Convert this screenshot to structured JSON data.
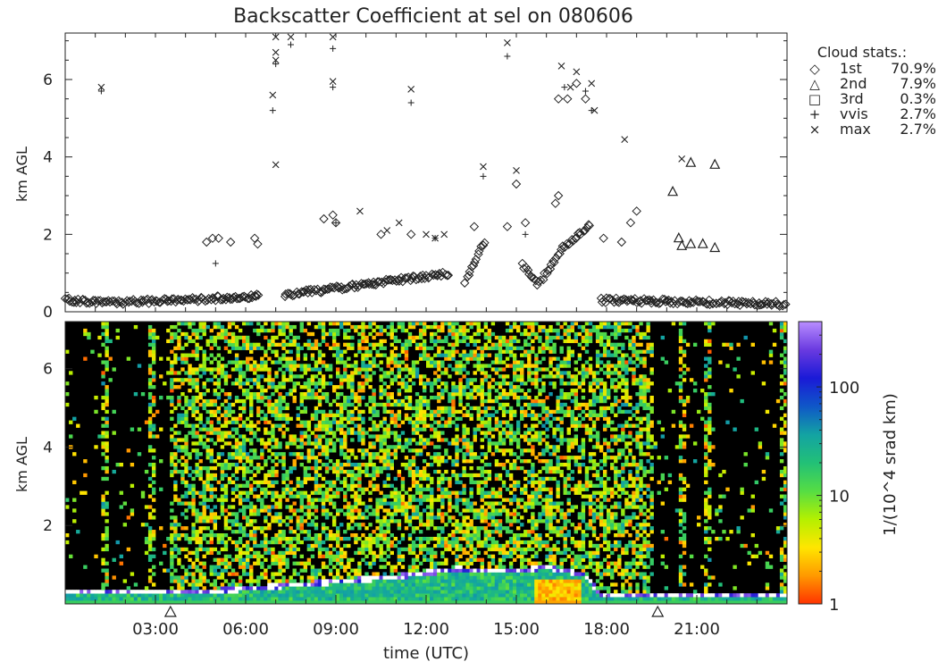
{
  "chart_data": [
    {
      "type": "scatter",
      "title": "Backscatter Coefficient at sel on 080606",
      "ylabel": "km AGL",
      "xlim": [
        0,
        24
      ],
      "ylim": [
        0,
        7.2
      ],
      "yticks": [
        "0",
        "2",
        "4",
        "6"
      ],
      "legend": {
        "position": "right",
        "title": "Cloud stats.:",
        "entries": [
          {
            "symbol": "◇",
            "name": "1st",
            "value": "70.9%"
          },
          {
            "symbol": "△",
            "name": "2nd",
            "value": "7.9%"
          },
          {
            "symbol": "□",
            "name": "3rd",
            "value": "0.3%"
          },
          {
            "symbol": "+",
            "name": "vvis",
            "value": "2.7%"
          },
          {
            "symbol": "×",
            "name": "max",
            "value": "2.7%"
          }
        ]
      },
      "series": [
        {
          "name": "1st",
          "marker": "diamond",
          "segments": [
            {
              "x": [
                0.0,
                2.0,
                4.0,
                5.0,
                6.5
              ],
              "y": [
                0.3,
                0.25,
                0.3,
                0.35,
                0.4
              ]
            },
            {
              "x": [
                7.3,
                8.5
              ],
              "y": [
                0.45,
                0.55
              ]
            },
            {
              "x": [
                8.5,
                12.8
              ],
              "y": [
                0.55,
                1.0
              ]
            },
            {
              "x": [
                13.3,
                14.0
              ],
              "y": [
                0.8,
                1.9
              ]
            },
            {
              "x": [
                15.2,
                15.7,
                16.0,
                16.5,
                17.5
              ],
              "y": [
                1.2,
                0.7,
                1.0,
                1.6,
                2.3
              ]
            },
            {
              "x": [
                17.8,
                24.0
              ],
              "y": [
                0.3,
                0.2
              ]
            }
          ],
          "points": [
            [
              4.7,
              1.8
            ],
            [
              4.9,
              1.9
            ],
            [
              5.1,
              1.9
            ],
            [
              5.5,
              1.8
            ],
            [
              6.3,
              1.9
            ],
            [
              6.4,
              1.75
            ],
            [
              8.6,
              2.4
            ],
            [
              8.9,
              2.5
            ],
            [
              9.0,
              2.3
            ],
            [
              10.5,
              2.0
            ],
            [
              11.5,
              2.0
            ],
            [
              13.6,
              2.2
            ],
            [
              14.7,
              2.2
            ],
            [
              15.0,
              3.3
            ],
            [
              15.3,
              2.3
            ],
            [
              16.3,
              2.8
            ],
            [
              16.4,
              3.0
            ],
            [
              16.4,
              5.5
            ],
            [
              16.7,
              5.5
            ],
            [
              17.0,
              5.9
            ],
            [
              17.3,
              5.5
            ],
            [
              17.9,
              1.9
            ],
            [
              18.5,
              1.8
            ],
            [
              18.8,
              2.3
            ],
            [
              19.0,
              2.6
            ]
          ]
        },
        {
          "name": "2nd",
          "marker": "triangle",
          "points": [
            [
              20.2,
              3.1
            ],
            [
              20.4,
              1.9
            ],
            [
              20.5,
              1.7
            ],
            [
              20.8,
              1.75
            ],
            [
              21.2,
              1.75
            ],
            [
              21.6,
              1.65
            ],
            [
              20.8,
              3.85
            ],
            [
              21.6,
              3.8
            ]
          ]
        },
        {
          "name": "3rd",
          "marker": "square",
          "points": []
        },
        {
          "name": "vvis",
          "marker": "plus",
          "points": [
            [
              1.2,
              5.7
            ],
            [
              6.9,
              5.2
            ],
            [
              7.0,
              6.4
            ],
            [
              7.5,
              6.9
            ],
            [
              8.9,
              5.8
            ],
            [
              8.9,
              6.8
            ],
            [
              5.0,
              1.25
            ],
            [
              9.0,
              2.3
            ],
            [
              11.5,
              5.4
            ],
            [
              13.9,
              3.5
            ],
            [
              14.7,
              6.6
            ],
            [
              15.3,
              2.0
            ],
            [
              16.6,
              5.8
            ],
            [
              17.3,
              5.7
            ],
            [
              17.5,
              5.2
            ],
            [
              12.3,
              1.9
            ]
          ]
        },
        {
          "name": "max",
          "marker": "x",
          "points": [
            [
              1.2,
              5.8
            ],
            [
              6.9,
              5.6
            ],
            [
              7.0,
              6.5
            ],
            [
              7.0,
              6.7
            ],
            [
              7.0,
              7.1
            ],
            [
              7.0,
              3.8
            ],
            [
              7.5,
              7.1
            ],
            [
              8.9,
              5.95
            ],
            [
              8.9,
              7.1
            ],
            [
              9.8,
              2.6
            ],
            [
              10.7,
              2.1
            ],
            [
              11.1,
              2.3
            ],
            [
              11.5,
              5.75
            ],
            [
              12.0,
              2.0
            ],
            [
              12.3,
              1.9
            ],
            [
              12.6,
              2.0
            ],
            [
              13.9,
              3.75
            ],
            [
              14.7,
              6.95
            ],
            [
              15.0,
              3.65
            ],
            [
              16.5,
              6.35
            ],
            [
              16.8,
              5.8
            ],
            [
              17.0,
              6.2
            ],
            [
              17.5,
              5.9
            ],
            [
              17.6,
              5.2
            ],
            [
              18.6,
              4.45
            ],
            [
              20.5,
              3.95
            ]
          ]
        }
      ]
    },
    {
      "type": "heatmap",
      "xlabel": "time (UTC)",
      "ylabel": "km AGL",
      "xlim": [
        0,
        24
      ],
      "ylim": [
        0,
        7.2
      ],
      "xticks": [
        "03:00",
        "06:00",
        "09:00",
        "12:00",
        "15:00",
        "18:00",
        "21:00"
      ],
      "xtick_values": [
        3,
        6,
        9,
        12,
        15,
        18,
        21
      ],
      "yticks": [
        "2",
        "4",
        "6"
      ],
      "triangle_markers_x": [
        3.5,
        19.7
      ],
      "colorbar": {
        "label": "1/(10^4 srad km)",
        "scale": "log",
        "range": [
          1,
          400
        ],
        "ticks": [
          "1",
          "10",
          "100"
        ],
        "colors": [
          "#ff3300",
          "#ff9900",
          "#ffe600",
          "#b4f000",
          "#55dd44",
          "#22c077",
          "#13a3a3",
          "#0f57c8",
          "#1a1ad7",
          "#6a3ae0",
          "#b88dff"
        ]
      },
      "blackout_bands_hours": [
        [
          0.0,
          1.2
        ],
        [
          1.5,
          2.7
        ],
        [
          3.0,
          3.5
        ],
        [
          19.6,
          20.4
        ],
        [
          20.6,
          21.2
        ],
        [
          21.5,
          23.8
        ]
      ],
      "surface_layer": [
        [
          0.0,
          0.4
        ],
        [
          2.0,
          0.35
        ],
        [
          4.0,
          0.35
        ],
        [
          6.0,
          0.45
        ],
        [
          8.5,
          0.6
        ],
        [
          11.0,
          0.75
        ],
        [
          13.0,
          0.95
        ],
        [
          15.0,
          0.9
        ],
        [
          16.0,
          1.0
        ],
        [
          17.3,
          0.8
        ],
        [
          17.8,
          0.3
        ],
        [
          24.0,
          0.3
        ]
      ],
      "max_value_region": {
        "x": [
          15.6,
          17.2
        ],
        "y": [
          0.0,
          0.6
        ],
        "value": 1
      }
    }
  ]
}
